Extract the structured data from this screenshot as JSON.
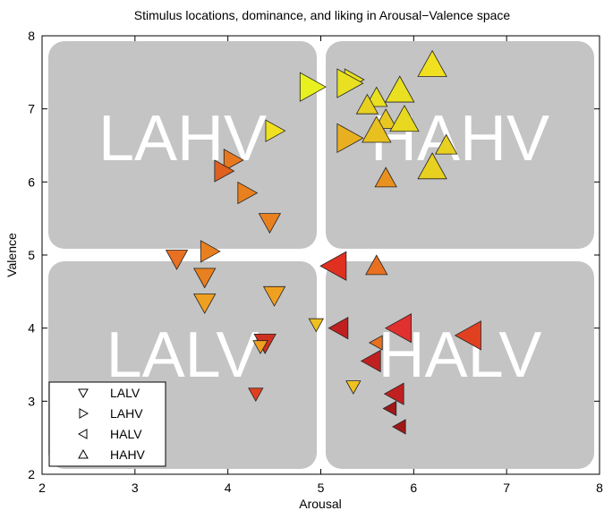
{
  "chart_data": {
    "type": "scatter",
    "title": "Stimulus locations, dominance, and liking in Arousal−Valence space",
    "xlabel": "Arousal",
    "ylabel": "Valence",
    "xlim": [
      2,
      8
    ],
    "ylim": [
      2,
      8
    ],
    "xticks": [
      2,
      3,
      4,
      5,
      6,
      7,
      8
    ],
    "yticks": [
      2,
      3,
      4,
      5,
      6,
      7,
      8
    ],
    "annotations": [
      "LAHV",
      "HAHV",
      "LALV",
      "HALV"
    ],
    "legend": "lower left",
    "series": [
      {
        "name": "LALV",
        "marker": "down",
        "x": [
          4.45,
          3.45,
          3.75,
          3.75,
          4.5,
          4.95,
          4.4,
          4.35,
          4.3,
          5.35
        ],
        "values": [
          5.45,
          4.95,
          4.7,
          4.35,
          4.45,
          4.05,
          3.8,
          3.75,
          3.1,
          3.2
        ],
        "sizes": [
          12,
          12,
          12,
          12,
          12,
          8,
          12,
          8,
          8,
          8
        ],
        "colors": [
          "#e88020",
          "#e87020",
          "#e88020",
          "#f0a020",
          "#f0a020",
          "#f0c020",
          "#d03020",
          "#f0a020",
          "#e04020",
          "#f0c020"
        ]
      },
      {
        "name": "LAHV",
        "marker": "right",
        "x": [
          4.9,
          5.35,
          5.3,
          5.3,
          4.5,
          4.05,
          3.95,
          4.2,
          3.8
        ],
        "values": [
          7.3,
          7.4,
          7.35,
          6.6,
          6.7,
          6.3,
          6.15,
          5.85,
          5.05
        ],
        "sizes": [
          16,
          12,
          16,
          16,
          12,
          12,
          12,
          12,
          12
        ],
        "colors": [
          "#e8f020",
          "#e8e020",
          "#e8e020",
          "#e8b020",
          "#f0e020",
          "#e87820",
          "#e06020",
          "#e88020",
          "#e88020"
        ]
      },
      {
        "name": "HALV",
        "marker": "left",
        "x": [
          5.15,
          5.2,
          5.85,
          6.6,
          5.6,
          5.55,
          5.8,
          5.75,
          5.85
        ],
        "values": [
          4.85,
          4.0,
          4.0,
          3.9,
          3.8,
          3.55,
          3.1,
          2.9,
          2.65
        ],
        "sizes": [
          16,
          12,
          16,
          16,
          8,
          12,
          12,
          8,
          8
        ],
        "colors": [
          "#e03020",
          "#c02020",
          "#e03030",
          "#e04020",
          "#e87020",
          "#c02020",
          "#c02020",
          "#a01818",
          "#a01818"
        ]
      },
      {
        "name": "HAHV",
        "marker": "up",
        "x": [
          6.2,
          5.85,
          5.6,
          5.5,
          5.7,
          5.9,
          5.6,
          6.35,
          6.2,
          5.7,
          5.6
        ],
        "values": [
          7.6,
          7.25,
          7.15,
          7.05,
          6.85,
          6.85,
          6.7,
          6.5,
          6.2,
          6.05,
          4.85
        ],
        "sizes": [
          16,
          16,
          12,
          12,
          12,
          16,
          16,
          12,
          16,
          12,
          12
        ],
        "colors": [
          "#f0e020",
          "#e8e020",
          "#e8e020",
          "#e8d020",
          "#e8c820",
          "#e8d820",
          "#e8c020",
          "#e8d020",
          "#e8d020",
          "#e89020",
          "#e87020"
        ]
      }
    ]
  }
}
